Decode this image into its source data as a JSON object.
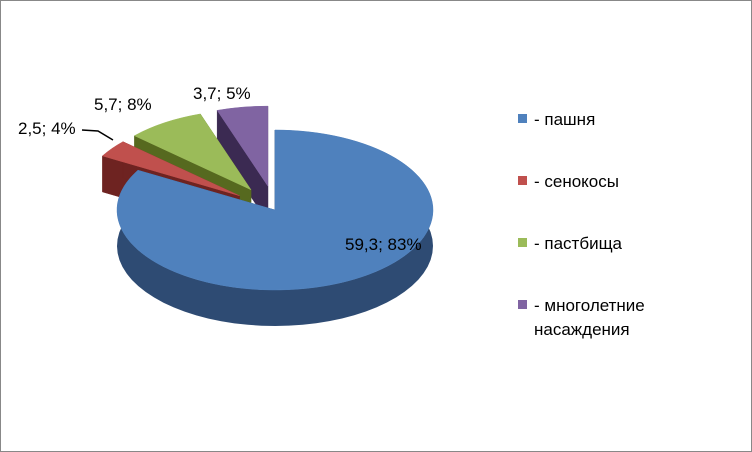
{
  "chart_data": {
    "type": "pie",
    "style": "3d-exploded",
    "slices": [
      {
        "name": "- пашня",
        "value": 59.3,
        "percent": 83,
        "label": "59,3; 83%",
        "color": "#4F81BD",
        "side": "#2E4B73"
      },
      {
        "name": "- сенокосы",
        "value": 2.5,
        "percent": 4,
        "label": "2,5; 4%",
        "color": "#C0504D",
        "side": "#6E2321"
      },
      {
        "name": "- пастбища",
        "value": 5.7,
        "percent": 8,
        "label": "5,7; 8%",
        "color": "#9BBB59",
        "side": "#56691F"
      },
      {
        "name": "- многолетние насаждения",
        "value": 3.7,
        "percent": 5,
        "label": "3,7; 5%",
        "color": "#8064A2",
        "side": "#3B2A52"
      }
    ],
    "legend_position": "right"
  },
  "legend": {
    "items": [
      {
        "text": "- пашня"
      },
      {
        "text": "- сенокосы"
      },
      {
        "text": "- пастбища"
      },
      {
        "text": "- многолетние насаждения"
      }
    ]
  }
}
